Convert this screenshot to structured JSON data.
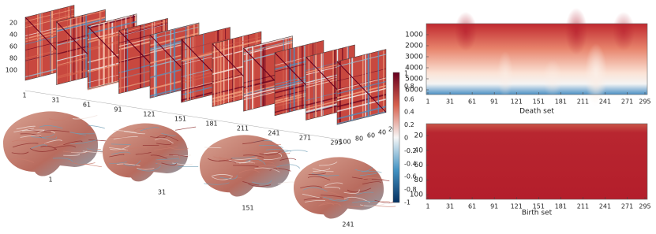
{
  "matrix_stack": {
    "row_ticks": [
      20,
      40,
      60,
      80,
      100
    ],
    "time_ticks": [
      1,
      31,
      61,
      91,
      121,
      151,
      181,
      211,
      241,
      271,
      295
    ],
    "depth_ticks": [
      100,
      80,
      60,
      40,
      20
    ],
    "colorbar_ticks": [
      1,
      0.8,
      0.6,
      0.4,
      0.2,
      0,
      -0.2,
      -0.4,
      -0.6,
      -0.8,
      -1
    ]
  },
  "brains": {
    "labels": [
      "1",
      "31",
      "151",
      "241"
    ]
  },
  "death_set": {
    "xlabel": "Death set",
    "yticks": [
      1000,
      2000,
      3000,
      4000,
      5000,
      6000
    ],
    "xticks": [
      1,
      31,
      61,
      91,
      121,
      151,
      181,
      211,
      241,
      271,
      295
    ]
  },
  "birth_set": {
    "xlabel": "Birth set",
    "yticks": [
      20,
      40,
      60,
      80,
      100
    ],
    "xticks": [
      1,
      31,
      61,
      91,
      121,
      151,
      181,
      211,
      241,
      271,
      295
    ]
  }
}
